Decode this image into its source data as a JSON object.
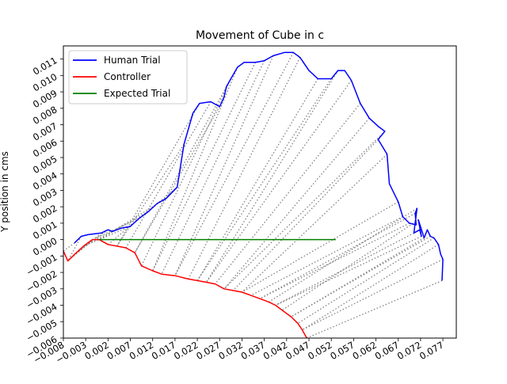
{
  "chart_data": {
    "type": "line",
    "title": "Movement of Cube in c",
    "xlabel": "",
    "ylabel": "Y position in cms",
    "xlim": [
      -0.008,
      0.08
    ],
    "ylim": [
      -0.006,
      0.0118
    ],
    "grid": false,
    "legend_position": "top-left",
    "x_ticks": [
      -0.008,
      -0.003,
      0.002,
      0.007,
      0.012,
      0.017,
      0.022,
      0.027,
      0.032,
      0.037,
      0.042,
      0.047,
      0.052,
      0.057,
      0.062,
      0.067,
      0.072,
      0.077
    ],
    "x_tick_labels": [
      "−0.008",
      "−0.003",
      "0.002",
      "0.007",
      "0.012",
      "0.017",
      "0.022",
      "0.027",
      "0.032",
      "0.037",
      "0.042",
      "0.047",
      "0.052",
      "0.057",
      "0.062",
      "0.067",
      "0.072",
      "0.077"
    ],
    "y_ticks": [
      -0.006,
      -0.005,
      -0.004,
      -0.003,
      -0.002,
      -0.001,
      0.0,
      0.001,
      0.002,
      0.003,
      0.004,
      0.005,
      0.006,
      0.007,
      0.008,
      0.009,
      0.01,
      0.011
    ],
    "y_tick_labels": [
      "−0.006",
      "−0.005",
      "−0.004",
      "−0.003",
      "−0.002",
      "−0.001",
      "0.000",
      "0.001",
      "0.002",
      "0.003",
      "0.004",
      "0.005",
      "0.006",
      "0.007",
      "0.008",
      "0.009",
      "0.010",
      "0.011"
    ],
    "series": [
      {
        "name": "Human Trial",
        "color": "#0000ff",
        "x": [
          -0.0055,
          -0.004,
          -0.0025,
          0.0005,
          0.002,
          0.003,
          0.005,
          0.007,
          0.009,
          0.011,
          0.013,
          0.015,
          0.0175,
          0.019,
          0.021,
          0.0225,
          0.025,
          0.027,
          0.028,
          0.0285,
          0.0295,
          0.031,
          0.0325,
          0.035,
          0.037,
          0.039,
          0.0415,
          0.0435,
          0.045,
          0.047,
          0.049,
          0.052,
          0.0535,
          0.055,
          0.0565,
          0.0585,
          0.0605,
          0.0625,
          0.064,
          0.0625,
          0.0645,
          0.065,
          0.067,
          0.068,
          0.0695,
          0.071,
          0.0708,
          0.0712,
          0.0705,
          0.0718,
          0.0722,
          0.0715,
          0.0728,
          0.0735,
          0.0742,
          0.075,
          0.076,
          0.0765,
          0.077,
          0.0768
        ],
        "y": [
          -0.0002,
          0.0002,
          0.0003,
          0.0004,
          0.0006,
          0.0005,
          0.0007,
          0.0008,
          0.0013,
          0.0017,
          0.0022,
          0.0025,
          0.0032,
          0.0058,
          0.0077,
          0.0083,
          0.0084,
          0.0081,
          0.0087,
          0.0093,
          0.0098,
          0.0105,
          0.0108,
          0.0108,
          0.0109,
          0.0112,
          0.0114,
          0.0114,
          0.0111,
          0.0103,
          0.0098,
          0.0098,
          0.0103,
          0.0103,
          0.0097,
          0.0083,
          0.0074,
          0.0069,
          0.0066,
          0.0061,
          0.0052,
          0.0034,
          0.0023,
          0.0014,
          0.001,
          0.0009,
          0.0016,
          0.0019,
          0.0004,
          0.0006,
          0.0002,
          0.0012,
          0.0001,
          0.0006,
          0.0002,
          0.0001,
          -0.0003,
          -0.0009,
          -0.0012,
          -0.0025
        ]
      },
      {
        "name": "Controller",
        "color": "#ff0000",
        "x": [
          -0.008,
          -0.007,
          -0.0055,
          -0.0035,
          -0.0015,
          0.0,
          0.002,
          0.004,
          0.006,
          0.008,
          0.0095,
          0.012,
          0.014,
          0.017,
          0.02,
          0.022,
          0.024,
          0.026,
          0.028,
          0.03,
          0.032,
          0.034,
          0.036,
          0.038,
          0.0395,
          0.041,
          0.043,
          0.0445,
          0.0455,
          0.0465
        ],
        "y": [
          -0.0007,
          -0.0013,
          -0.0009,
          -0.0004,
          0.0,
          0.0,
          -0.0003,
          -0.0004,
          -0.0005,
          -0.0008,
          -0.0016,
          -0.0019,
          -0.0021,
          -0.0022,
          -0.0024,
          -0.0025,
          -0.0026,
          -0.0027,
          -0.003,
          -0.0031,
          -0.0032,
          -0.0034,
          -0.0036,
          -0.0038,
          -0.004,
          -0.0043,
          -0.0047,
          -0.0051,
          -0.0055,
          -0.006
        ]
      },
      {
        "name": "Expected Trial",
        "color": "#008000",
        "x": [
          0.0,
          0.053
        ],
        "y": [
          0.0,
          0.0
        ]
      }
    ],
    "connector_lines": {
      "style": "dotted",
      "color": "#808080",
      "description": "dotted gray lines connecting corresponding points of Human Trial and Controller"
    }
  }
}
